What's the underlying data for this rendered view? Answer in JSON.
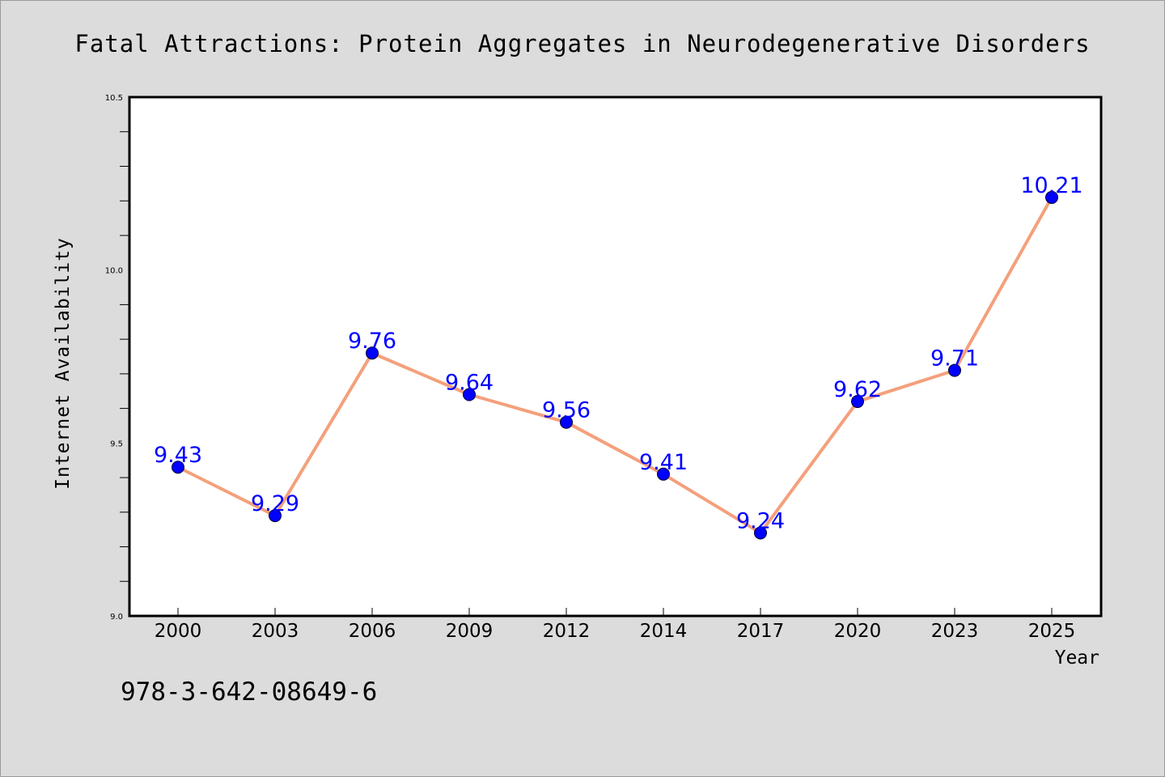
{
  "chart_data": {
    "type": "line",
    "title": "Fatal Attractions: Protein Aggregates in Neurodegenerative Disorders",
    "xlabel": "Year",
    "ylabel": "Internet Availability",
    "categories": [
      "2000",
      "2003",
      "2006",
      "2009",
      "2012",
      "2014",
      "2017",
      "2020",
      "2023",
      "2025"
    ],
    "series": [
      {
        "values": [
          9.43,
          9.29,
          9.76,
          9.64,
          9.56,
          9.41,
          9.24,
          9.62,
          9.71,
          10.21
        ],
        "labels": [
          "9.43",
          "9.29",
          "9.76",
          "9.64",
          "9.56",
          "9.41",
          "9.24",
          "9.62",
          "9.71",
          "10.21"
        ],
        "line_color": "#f4a07c",
        "marker_color": "#0000ff"
      }
    ],
    "ylim": [
      9.0,
      10.5
    ],
    "yticks": [
      9.0,
      9.5,
      10.0,
      10.5
    ],
    "ytick_labels": [
      "9.0",
      "9.5",
      "10.0",
      "10.5"
    ],
    "grid": false,
    "legend": "none"
  },
  "footer": {
    "isbn": "978-3-642-08649-6"
  }
}
